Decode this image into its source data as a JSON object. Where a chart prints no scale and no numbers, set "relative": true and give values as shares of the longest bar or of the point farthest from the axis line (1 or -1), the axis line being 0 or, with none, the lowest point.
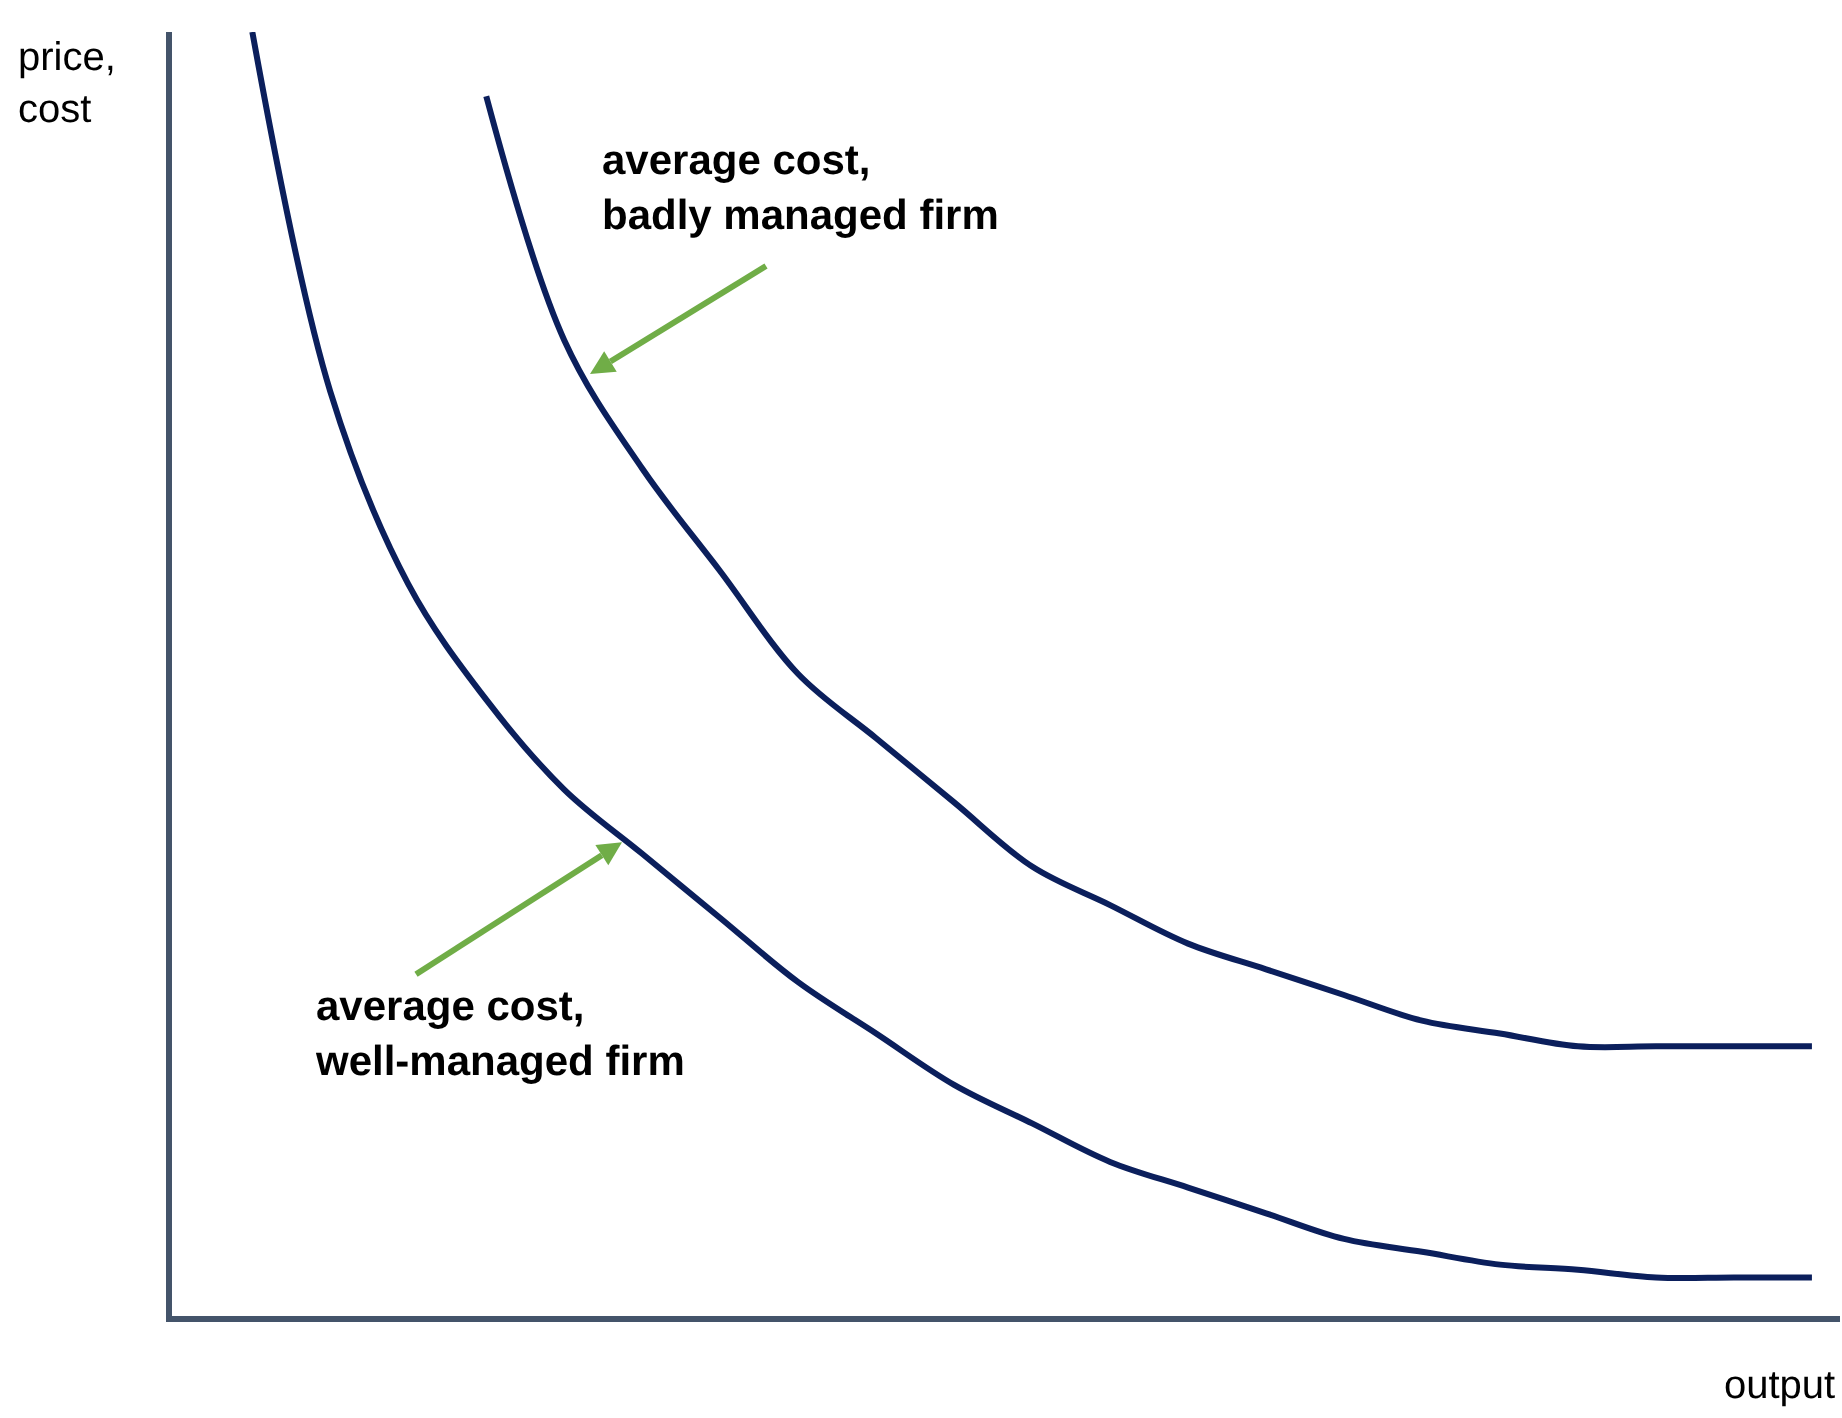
{
  "chart_data": {
    "type": "line",
    "relative": true,
    "xlabel": "output",
    "ylabel": "price,\ncost",
    "categories": [
      null,
      null,
      null,
      null,
      null,
      null,
      null,
      null,
      null,
      null,
      null,
      null,
      null,
      null,
      null,
      null,
      null,
      null,
      null,
      null,
      null
    ],
    "series": [
      {
        "color": "#0b1f5c",
        "values": [
          1,
          0.72,
          0.57,
          0.48,
          0.41,
          0.36,
          0.31,
          0.26,
          0.22,
          0.18,
          0.15,
          0.12,
          0.1,
          0.08,
          0.06,
          0.05,
          0.04,
          0.036,
          0.03,
          0.03,
          0.03
        ]
      },
      {
        "color": "#0b1f5c",
        "values": [
          null,
          null,
          null,
          0.95,
          0.76,
          0.66,
          0.58,
          0.5,
          0.45,
          0.4,
          0.35,
          0.32,
          0.29,
          0.27,
          0.25,
          0.23,
          0.22,
          0.21,
          0.21,
          0.21,
          0.21
        ]
      }
    ],
    "annotations": [
      "average cost,\nbadly managed firm",
      "average cost,\nwell-managed firm"
    ]
  }
}
